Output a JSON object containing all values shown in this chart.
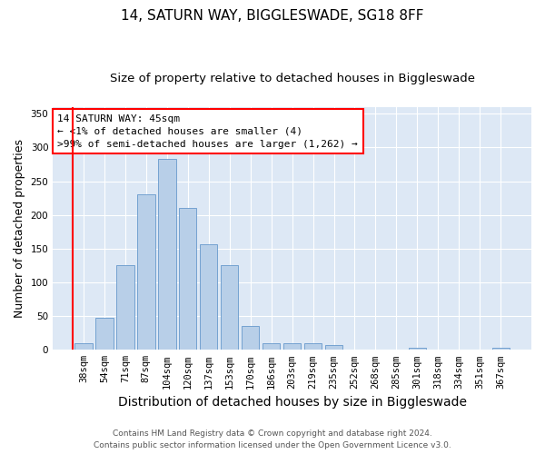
{
  "title_line1": "14, SATURN WAY, BIGGLESWADE, SG18 8FF",
  "title_line2": "Size of property relative to detached houses in Biggleswade",
  "xlabel": "Distribution of detached houses by size in Biggleswade",
  "ylabel": "Number of detached properties",
  "categories": [
    "38sqm",
    "54sqm",
    "71sqm",
    "87sqm",
    "104sqm",
    "120sqm",
    "137sqm",
    "153sqm",
    "170sqm",
    "186sqm",
    "203sqm",
    "219sqm",
    "235sqm",
    "252sqm",
    "268sqm",
    "285sqm",
    "301sqm",
    "318sqm",
    "334sqm",
    "351sqm",
    "367sqm"
  ],
  "values": [
    10,
    47,
    126,
    231,
    283,
    210,
    157,
    125,
    35,
    10,
    10,
    10,
    7,
    0,
    0,
    0,
    3,
    0,
    0,
    0,
    3
  ],
  "bar_color": "#b8cfe8",
  "bar_edge_color": "#6699cc",
  "background_color": "#dde8f5",
  "annotation_line1": "14 SATURN WAY: 45sqm",
  "annotation_line2": "← <1% of detached houses are smaller (4)",
  "annotation_line3": ">99% of semi-detached houses are larger (1,262) →",
  "annotation_box_color": "white",
  "annotation_box_edgecolor": "red",
  "property_line_color": "red",
  "ylim": [
    0,
    360
  ],
  "yticks": [
    0,
    50,
    100,
    150,
    200,
    250,
    300,
    350
  ],
  "footer_line1": "Contains HM Land Registry data © Crown copyright and database right 2024.",
  "footer_line2": "Contains public sector information licensed under the Open Government Licence v3.0.",
  "title_fontsize": 11,
  "subtitle_fontsize": 9.5,
  "ylabel_fontsize": 9,
  "xlabel_fontsize": 10,
  "tick_fontsize": 7.5,
  "annotation_fontsize": 8,
  "footer_fontsize": 6.5
}
